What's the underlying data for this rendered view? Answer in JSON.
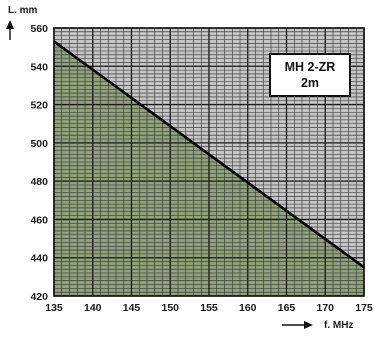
{
  "chart_data": {
    "type": "area",
    "ylabel": "L. mm",
    "xlabel": "f. MHz",
    "xlim": [
      135,
      175
    ],
    "ylim": [
      420,
      560
    ],
    "x_ticks": [
      135,
      140,
      145,
      150,
      155,
      160,
      165,
      170,
      175
    ],
    "y_ticks": [
      420,
      440,
      460,
      480,
      500,
      520,
      540,
      560
    ],
    "series": [
      {
        "x": [
          135,
          175
        ],
        "y": [
          553,
          435
        ]
      }
    ],
    "annotation": {
      "line1": "MH  2-ZR",
      "line2": "2m"
    },
    "colors": {
      "fill_below": "#8fa07a",
      "fill_above": "#c4c4c4",
      "grid_major": "#1a1a1a",
      "grid_minor": "#2c2c2c",
      "curve": "#000000"
    },
    "grid": true
  }
}
